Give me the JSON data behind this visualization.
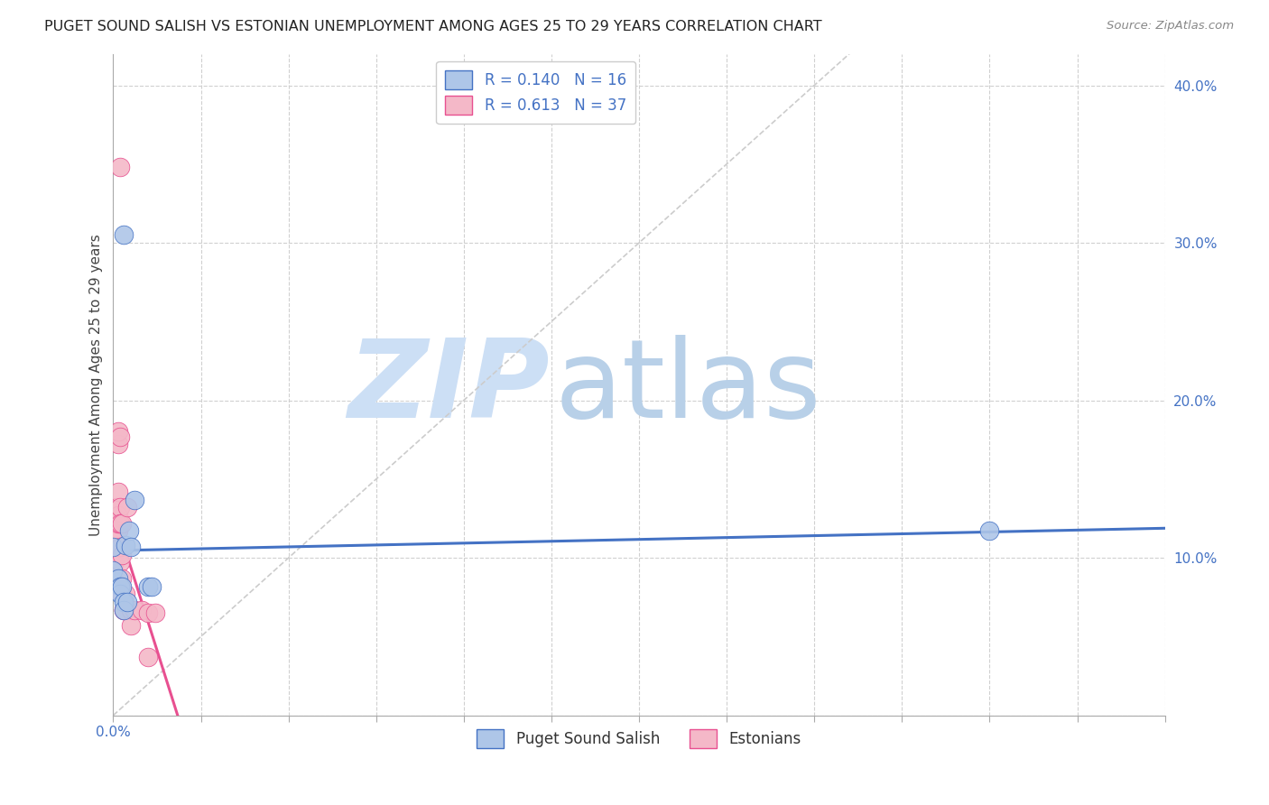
{
  "title": "PUGET SOUND SALISH VS ESTONIAN UNEMPLOYMENT AMONG AGES 25 TO 29 YEARS CORRELATION CHART",
  "source": "Source: ZipAtlas.com",
  "ylabel": "Unemployment Among Ages 25 to 29 years",
  "xlim": [
    0.0,
    0.6
  ],
  "ylim": [
    0.0,
    0.42
  ],
  "x_ticks": [
    0.0,
    0.05,
    0.1,
    0.15,
    0.2,
    0.25,
    0.3,
    0.35,
    0.4,
    0.45,
    0.5,
    0.55,
    0.6
  ],
  "x_tick_labels_show": {
    "0.0": "0.0%"
  },
  "y_ticks": [
    0.0,
    0.1,
    0.2,
    0.3,
    0.4
  ],
  "y_tick_labels": [
    "",
    "10.0%",
    "20.0%",
    "30.0%",
    "40.0%"
  ],
  "psg_color": "#aec6e8",
  "psg_line_color": "#4472c4",
  "est_color": "#f4b8c8",
  "est_line_color": "#e85090",
  "watermark_zip_color": "#ccdff5",
  "watermark_atlas_color": "#b8cfe8",
  "R_psg": 0.14,
  "N_psg": 16,
  "R_est": 0.613,
  "N_est": 37,
  "legend_label_psg": "Puget Sound Salish",
  "legend_label_est": "Estonians",
  "psg_x": [
    0.0,
    0.0,
    0.003,
    0.004,
    0.004,
    0.005,
    0.006,
    0.006,
    0.007,
    0.008,
    0.009,
    0.01,
    0.012,
    0.02,
    0.022,
    0.5
  ],
  "psg_y": [
    0.107,
    0.092,
    0.087,
    0.082,
    0.077,
    0.082,
    0.072,
    0.067,
    0.108,
    0.072,
    0.117,
    0.107,
    0.137,
    0.082,
    0.082,
    0.117
  ],
  "psg_outlier_x": [
    0.006
  ],
  "psg_outlier_y": [
    0.305
  ],
  "est_x": [
    0.0,
    0.0,
    0.0,
    0.0,
    0.0,
    0.001,
    0.002,
    0.002,
    0.002,
    0.002,
    0.002,
    0.003,
    0.003,
    0.003,
    0.003,
    0.003,
    0.003,
    0.004,
    0.004,
    0.004,
    0.004,
    0.004,
    0.005,
    0.005,
    0.005,
    0.005,
    0.006,
    0.006,
    0.007,
    0.008,
    0.01,
    0.01,
    0.012,
    0.016,
    0.02,
    0.02,
    0.024
  ],
  "est_y": [
    0.087,
    0.092,
    0.097,
    0.102,
    0.108,
    0.097,
    0.102,
    0.108,
    0.115,
    0.122,
    0.132,
    0.142,
    0.172,
    0.18,
    0.117,
    0.122,
    0.127,
    0.132,
    0.177,
    0.097,
    0.107,
    0.122,
    0.102,
    0.122,
    0.087,
    0.077,
    0.067,
    0.067,
    0.077,
    0.132,
    0.067,
    0.057,
    0.067,
    0.067,
    0.037,
    0.065,
    0.065
  ],
  "est_outlier_x": [
    0.004
  ],
  "est_outlier_y": [
    0.348
  ],
  "diag_line_color": "#cccccc",
  "grid_color": "#d0d0d0",
  "tick_color": "#4472c4"
}
